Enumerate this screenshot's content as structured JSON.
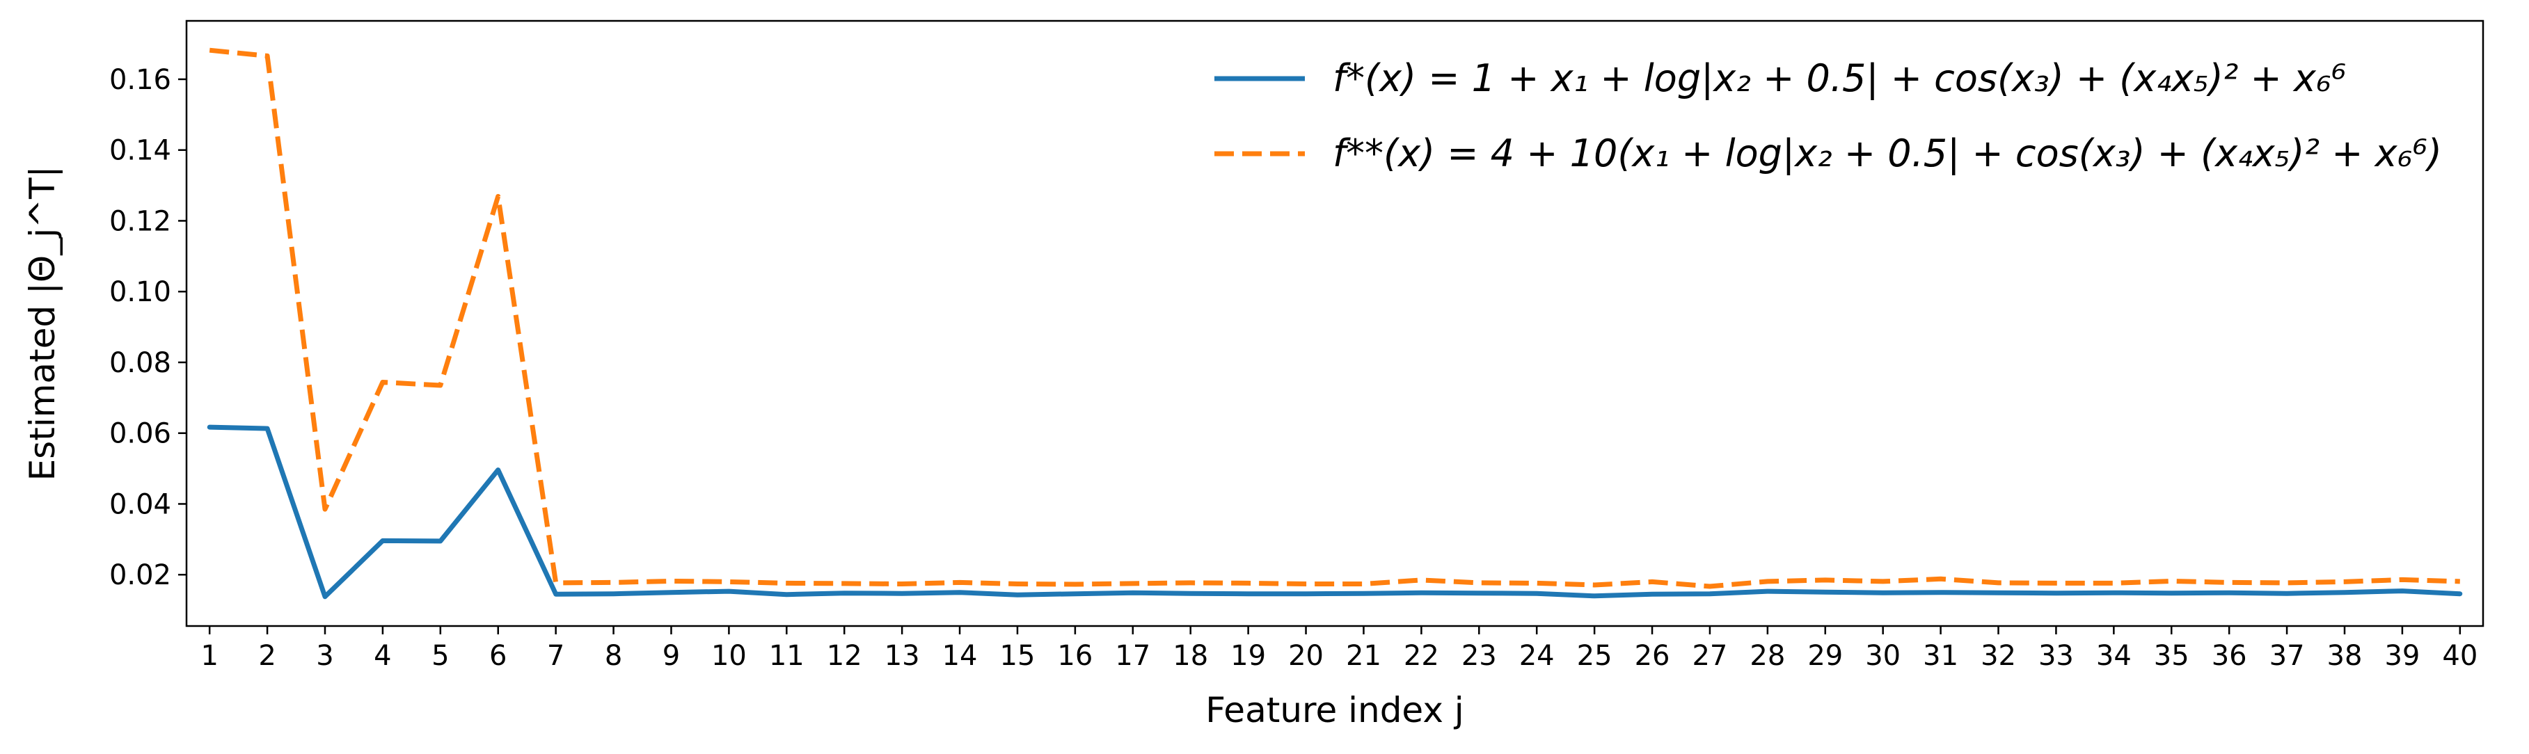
{
  "chart_data": {
    "type": "line",
    "xlabel": "Feature index j",
    "ylabel": "Estimated |Θ_j^T|",
    "xlim": [
      0.6,
      40.4
    ],
    "ylim": [
      0.0055,
      0.1765
    ],
    "xticks": [
      1,
      2,
      3,
      4,
      5,
      6,
      7,
      8,
      9,
      10,
      11,
      12,
      13,
      14,
      15,
      16,
      17,
      18,
      19,
      20,
      21,
      22,
      23,
      24,
      25,
      26,
      27,
      28,
      29,
      30,
      31,
      32,
      33,
      34,
      35,
      36,
      37,
      38,
      39,
      40
    ],
    "yticks": [
      0.02,
      0.04,
      0.06,
      0.08,
      0.1,
      0.12,
      0.14,
      0.16
    ],
    "ytick_labels": [
      "0.02",
      "0.04",
      "0.06",
      "0.08",
      "0.10",
      "0.12",
      "0.14",
      "0.16"
    ],
    "grid": false,
    "legend_position": "top-right",
    "x": [
      1,
      2,
      3,
      4,
      5,
      6,
      7,
      8,
      9,
      10,
      11,
      12,
      13,
      14,
      15,
      16,
      17,
      18,
      19,
      20,
      21,
      22,
      23,
      24,
      25,
      26,
      27,
      28,
      29,
      30,
      31,
      32,
      33,
      34,
      35,
      36,
      37,
      38,
      39,
      40
    ],
    "series": [
      {
        "name": "f*(x) = 1 + x1 + log|x2 + 0.5| + cos(x3) + (x4x5)^2 + x6^6",
        "legend_label": "f*(x) = 1 + x₁ + log|x₂ + 0.5| + cos(x₃) + (x₄x₅)² + x₆⁶",
        "color": "#1f77b4",
        "style": "solid",
        "values": [
          0.0617,
          0.0613,
          0.0138,
          0.0296,
          0.0295,
          0.0496,
          0.0145,
          0.0146,
          0.015,
          0.0153,
          0.0144,
          0.0148,
          0.0147,
          0.015,
          0.0143,
          0.0146,
          0.0149,
          0.0147,
          0.0146,
          0.0146,
          0.0147,
          0.0149,
          0.0148,
          0.0147,
          0.014,
          0.0145,
          0.0146,
          0.0153,
          0.0151,
          0.0149,
          0.015,
          0.0149,
          0.0148,
          0.0149,
          0.0148,
          0.0149,
          0.0147,
          0.015,
          0.0154,
          0.0146
        ]
      },
      {
        "name": "f**(x) = 4 + 10(x1 + log|x2 + 0.5| + cos(x3) + (x4x5)^2 + x6^6)",
        "legend_label": "f**(x) = 4 + 10(x₁ + log|x₂ + 0.5| + cos(x₃) + (x₄x₅)² + x₆⁶)",
        "color": "#ff7f0e",
        "style": "dashed",
        "values": [
          0.1682,
          0.1666,
          0.0385,
          0.0744,
          0.0735,
          0.1269,
          0.0177,
          0.0178,
          0.0182,
          0.018,
          0.0176,
          0.0175,
          0.0174,
          0.0178,
          0.0174,
          0.0173,
          0.0175,
          0.0177,
          0.0176,
          0.0174,
          0.0174,
          0.0185,
          0.0177,
          0.0176,
          0.0171,
          0.018,
          0.0167,
          0.0181,
          0.0185,
          0.0181,
          0.0188,
          0.0177,
          0.0176,
          0.0176,
          0.0182,
          0.0178,
          0.0177,
          0.018,
          0.0186,
          0.0181
        ]
      }
    ]
  }
}
